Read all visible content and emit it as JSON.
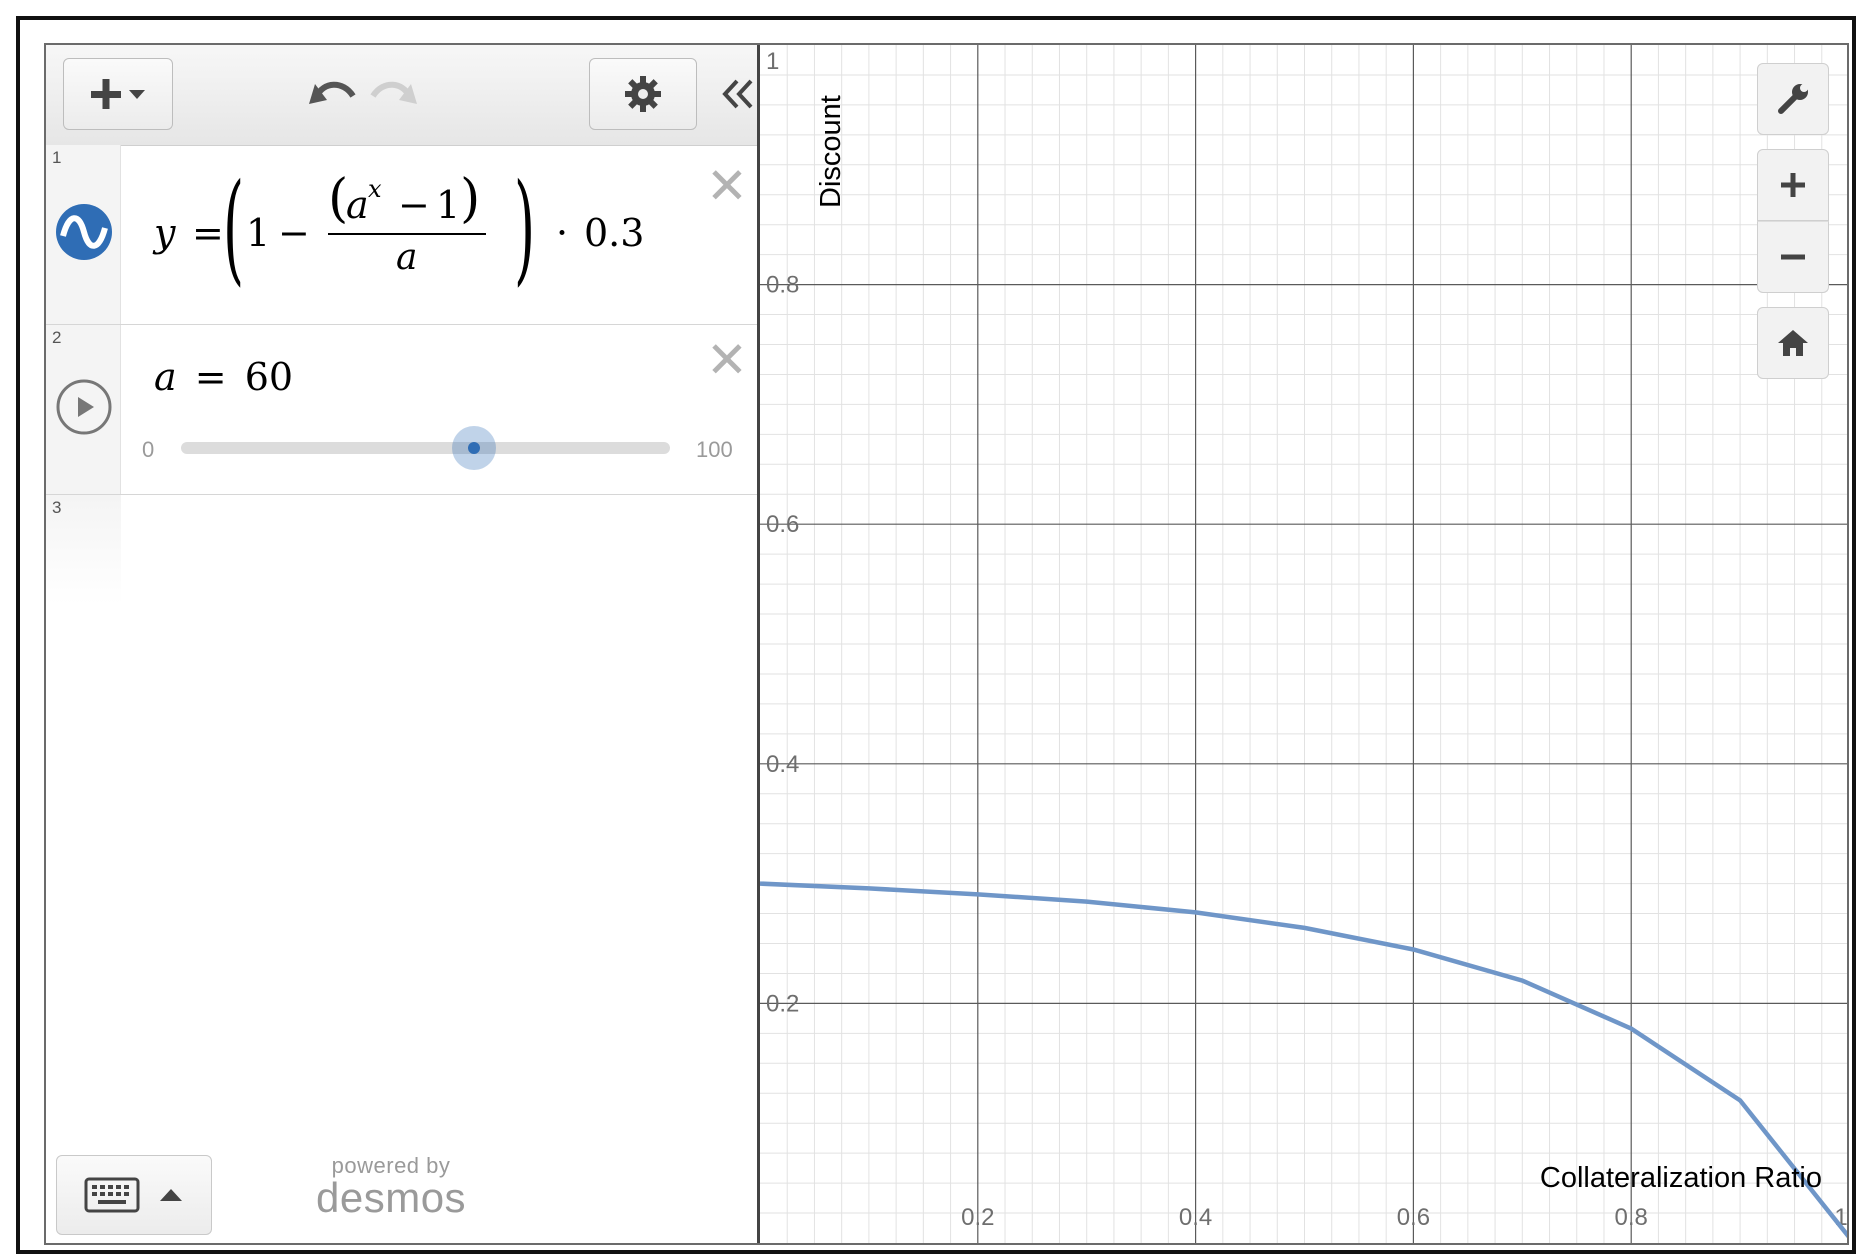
{
  "toolbar": {
    "add_icon": "plus-dropdown-icon",
    "undo_icon": "undo-icon",
    "redo_icon": "redo-icon",
    "settings_icon": "gear-icon",
    "collapse_icon": "double-chevron-left-icon"
  },
  "expressions": [
    {
      "index": "1",
      "type": "function",
      "color": "#2f6db5",
      "latex": "y = (1 - (a^x - 1)/a) · 0.3",
      "display": {
        "lhs": "y",
        "eq": "=",
        "one": "1",
        "minus": "−",
        "num_base": "a",
        "num_exp": "x",
        "num_minus": "−",
        "num_one": "1",
        "den": "a",
        "dot": "·",
        "factor": "0.3"
      }
    },
    {
      "index": "2",
      "type": "slider",
      "latex": "a = 60",
      "display": {
        "var": "a",
        "eq": "=",
        "value": "60"
      },
      "slider": {
        "min": "0",
        "max": "100",
        "value": 60
      }
    },
    {
      "index": "3",
      "type": "empty"
    }
  ],
  "footer": {
    "keyboard_icon": "keyboard-icon",
    "caret_icon": "caret-up-icon",
    "powered_by": "powered by",
    "brand": "desmos"
  },
  "graph_controls": {
    "wrench_icon": "wrench-icon",
    "zoom_in_icon": "plus-icon",
    "zoom_out_icon": "minus-icon",
    "home_icon": "home-icon"
  },
  "chart_data": {
    "type": "line",
    "xlabel": "Collateralization Ratio",
    "ylabel": "Discount",
    "xlim": [
      0,
      1
    ],
    "ylim": [
      0,
      1
    ],
    "x_ticks": [
      "0.2",
      "0.4",
      "0.6",
      "0.8",
      "1"
    ],
    "y_ticks": [
      "0.2",
      "0.4",
      "0.6",
      "0.8",
      "1"
    ],
    "grid": true,
    "series": [
      {
        "color": "#6f96c8",
        "x": [
          0,
          0.1,
          0.2,
          0.3,
          0.4,
          0.5,
          0.6,
          0.7,
          0.8,
          0.9,
          1
        ],
        "y": [
          0.3,
          0.296,
          0.291,
          0.285,
          0.276,
          0.263,
          0.245,
          0.219,
          0.179,
          0.119,
          0.005
        ]
      }
    ]
  }
}
